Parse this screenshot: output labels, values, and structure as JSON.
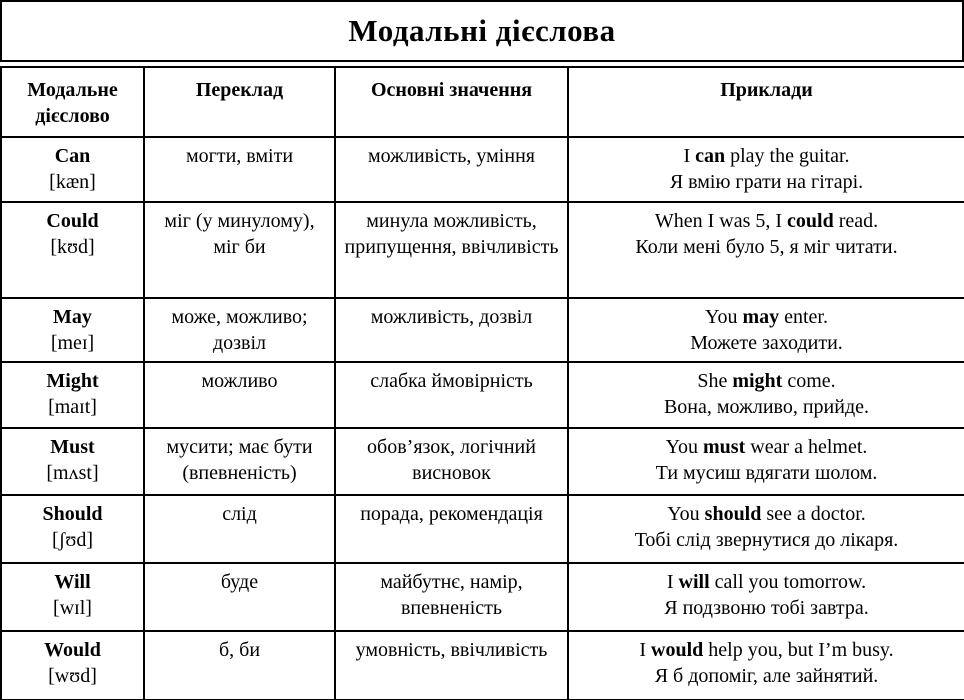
{
  "title": "Модальні дієслова",
  "table": {
    "headers": [
      "Модальне дієслово",
      "Переклад",
      "Основні значення",
      "Приклади"
    ],
    "rows": [
      {
        "verb": "Can",
        "transcription": "[kæn]",
        "translation": "могти, вміти",
        "meaning": "можливість, уміння",
        "example_en_before": "I ",
        "example_en_bold": "can",
        "example_en_after": " play the guitar.",
        "example_uk": "Я вмію грати на гітарі."
      },
      {
        "verb": "Could",
        "transcription": "[kʊd]",
        "translation": "міг (у минулому), міг би",
        "meaning": "минула можливість, припущення, ввічливість",
        "example_en_before": "When I was 5, I ",
        "example_en_bold": "could",
        "example_en_after": " read.",
        "example_uk": "Коли мені було 5, я міг читати."
      },
      {
        "verb": "May",
        "transcription": "[meɪ]",
        "translation": "може, можливо; дозвіл",
        "meaning": "можливість, дозвіл",
        "example_en_before": "You ",
        "example_en_bold": "may",
        "example_en_after": " enter.",
        "example_uk": "Можете заходити."
      },
      {
        "verb": "Might",
        "transcription": "[maɪt]",
        "translation": "можливо",
        "meaning": "слабка ймовірність",
        "example_en_before": "She ",
        "example_en_bold": "might",
        "example_en_after": " come.",
        "example_uk": "Вона, можливо, прийде."
      },
      {
        "verb": "Must",
        "transcription": "[mʌst]",
        "translation": "мусити; має бути (впевненість)",
        "meaning": "обов’язок, логічний висновок",
        "example_en_before": "You ",
        "example_en_bold": "must",
        "example_en_after": " wear a helmet.",
        "example_uk": "Ти мусиш вдягати шолом."
      },
      {
        "verb": "Should",
        "transcription": "[ʃʊd]",
        "translation": "слід",
        "meaning": "порада, рекомендація",
        "example_en_before": "You ",
        "example_en_bold": "should",
        "example_en_after": " see a doctor.",
        "example_uk": "Тобі слід звернутися до лікаря."
      },
      {
        "verb": "Will",
        "transcription": "[wɪl]",
        "translation": "буде",
        "meaning": "майбутнє, намір, впевненість",
        "example_en_before": "I ",
        "example_en_bold": "will",
        "example_en_after": " call you tomorrow.",
        "example_uk": "Я подзвоню тобі завтра."
      },
      {
        "verb": "Would",
        "transcription": "[wʊd]",
        "translation": "б, би",
        "meaning": "умовність, ввічливість",
        "example_en_before": "I ",
        "example_en_bold": "would",
        "example_en_after": " help you, but I’m busy.",
        "example_uk": "Я б допоміг, але зайнятий."
      }
    ]
  }
}
